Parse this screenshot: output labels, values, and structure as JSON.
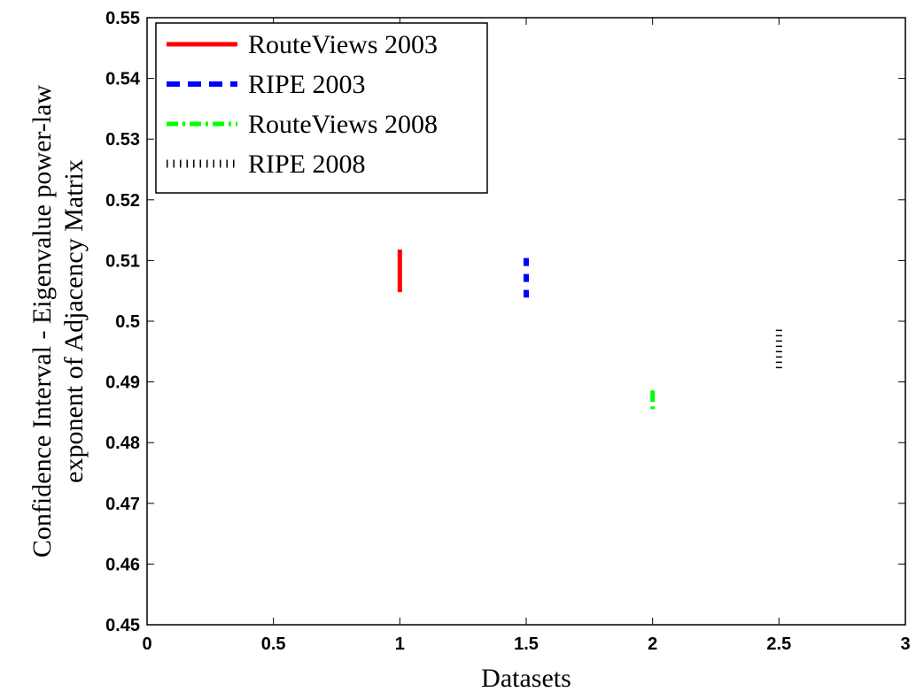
{
  "chart_data": {
    "type": "errorbar",
    "title": "",
    "xlabel": "Datasets",
    "ylabel_lines": [
      "Confidence Interval - Eigenvalue power-law",
      "exponent of Adjacency Matrix"
    ],
    "xlim": [
      0,
      3
    ],
    "ylim": [
      0.45,
      0.55
    ],
    "xticks": [
      "0",
      "0.5",
      "1",
      "1.5",
      "2",
      "2.5",
      "3"
    ],
    "yticks": [
      "0.45",
      "0.46",
      "0.47",
      "0.48",
      "0.49",
      "0.5",
      "0.51",
      "0.52",
      "0.53",
      "0.54",
      "0.55"
    ],
    "grid": false,
    "legend_position": "top-left",
    "series": [
      {
        "name": "RouteViews 2003",
        "x": 1.0,
        "y_low": 0.5048,
        "y_high": 0.5118,
        "color": "#ff0000",
        "style": "solid"
      },
      {
        "name": "RIPE 2003",
        "x": 1.5,
        "y_low": 0.5039,
        "y_high": 0.5104,
        "color": "#0000ff",
        "style": "dashed"
      },
      {
        "name": "RouteViews 2008",
        "x": 2.0,
        "y_low": 0.4853,
        "y_high": 0.4886,
        "color": "#00ff00",
        "style": "dashdot"
      },
      {
        "name": "RIPE 2008",
        "x": 2.5,
        "y_low": 0.4922,
        "y_high": 0.4986,
        "color": "#000000",
        "style": "dotted"
      }
    ]
  }
}
